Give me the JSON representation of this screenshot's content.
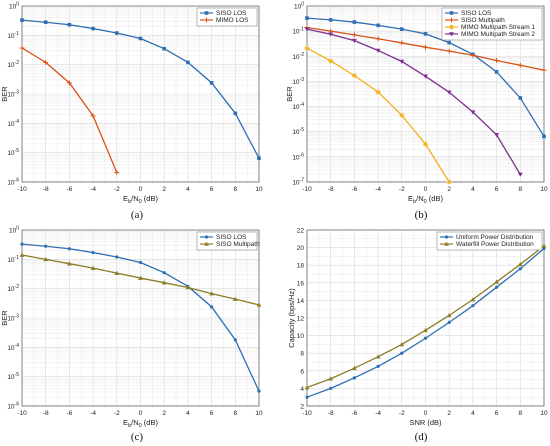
{
  "colors": {
    "blue": "#2e6fb3",
    "red": "#d95319",
    "orange": "#f2b01e",
    "purple": "#7e2f8e",
    "olive": "#8c7d26",
    "grid": "#d9d9d9"
  },
  "chart_data": [
    {
      "type": "line",
      "panel_label": "(a)",
      "xlabel_main": "E",
      "xlabel_sub": "b",
      "xlabel_mid": "/N",
      "xlabel_sub2": "0",
      "xlabel_tail": " (dB)",
      "ylabel": "BER",
      "yscale": "log",
      "xlim": [
        -10,
        10
      ],
      "ylim_exp": [
        -6,
        0
      ],
      "x_ticks": [
        "-10",
        "-8",
        "-6",
        "-4",
        "-2",
        "0",
        "2",
        "4",
        "6",
        "8",
        "10"
      ],
      "y_tick_exps": [
        -6,
        -5,
        -4,
        -3,
        -2,
        -1,
        0
      ],
      "grid": true,
      "legend_position": "top-right",
      "series": [
        {
          "name": "SISO LOS",
          "color": "#2e6fb3",
          "marker": "square",
          "x": [
            -10,
            -8,
            -6,
            -4,
            -2,
            0,
            2,
            4,
            6,
            8,
            10
          ],
          "y": [
            0.33,
            0.28,
            0.23,
            0.17,
            0.12,
            0.078,
            0.035,
            0.012,
            0.0024,
            0.00022,
            6.5e-06
          ]
        },
        {
          "name": "MIMO LOS",
          "color": "#d95319",
          "marker": "plus",
          "x": [
            -10,
            -8,
            -6,
            -4,
            -2
          ],
          "y": [
            0.037,
            0.012,
            0.0024,
            0.00018,
            2.1e-06
          ]
        }
      ]
    },
    {
      "type": "line",
      "panel_label": "(b)",
      "xlabel_main": "E",
      "xlabel_sub": "b",
      "xlabel_mid": "/N",
      "xlabel_sub2": "0",
      "xlabel_tail": " (dB)",
      "ylabel": "BER",
      "yscale": "log",
      "xlim": [
        -10,
        10
      ],
      "ylim_exp": [
        -7,
        0
      ],
      "x_ticks": [
        "-10",
        "-8",
        "-6",
        "-4",
        "-2",
        "0",
        "2",
        "4",
        "6",
        "8",
        "10"
      ],
      "y_tick_exps": [
        -7,
        -6,
        -5,
        -4,
        -3,
        -2,
        -1,
        0
      ],
      "grid": true,
      "legend_position": "top-right",
      "series": [
        {
          "name": "SISO LOS",
          "color": "#2e6fb3",
          "marker": "square",
          "x": [
            -10,
            -8,
            -6,
            -4,
            -2,
            0,
            2,
            4,
            6,
            8,
            10
          ],
          "y": [
            0.33,
            0.28,
            0.23,
            0.17,
            0.12,
            0.078,
            0.035,
            0.012,
            0.0024,
            0.00022,
            6.5e-06
          ]
        },
        {
          "name": "SISO Multipath",
          "color": "#d95319",
          "marker": "plus",
          "x": [
            -10,
            -8,
            -6,
            -4,
            -2,
            0,
            2,
            4,
            6,
            8,
            10
          ],
          "y": [
            0.14,
            0.1,
            0.071,
            0.05,
            0.034,
            0.023,
            0.016,
            0.011,
            0.0068,
            0.0044,
            0.0028
          ]
        },
        {
          "name": "MIMO Multipath Stream 1",
          "color": "#f2b01e",
          "marker": "star",
          "x": [
            -10,
            -8,
            -6,
            -4,
            -2,
            0,
            2
          ],
          "y": [
            0.021,
            0.0065,
            0.0017,
            0.00038,
            4.5e-05,
            3.2e-06,
            1e-07
          ]
        },
        {
          "name": "MIMO Multipath Stream 2",
          "color": "#7e2f8e",
          "marker": "triangle-down",
          "x": [
            -10,
            -8,
            -6,
            -4,
            -2,
            0,
            2,
            4,
            6,
            8
          ],
          "y": [
            0.12,
            0.075,
            0.042,
            0.017,
            0.0062,
            0.0016,
            0.00037,
            6e-05,
            7.5e-06,
            2e-07
          ]
        }
      ]
    },
    {
      "type": "line",
      "panel_label": "(c)",
      "xlabel_main": "E",
      "xlabel_sub": "b",
      "xlabel_mid": "/N",
      "xlabel_sub2": "0",
      "xlabel_tail": " (dB)",
      "ylabel": "BER",
      "yscale": "log",
      "xlim": [
        -10,
        10
      ],
      "ylim_exp": [
        -6,
        0
      ],
      "x_ticks": [
        "-10",
        "-8",
        "-6",
        "-4",
        "-2",
        "0",
        "2",
        "4",
        "6",
        "8",
        "10"
      ],
      "y_tick_exps": [
        -6,
        -5,
        -4,
        -3,
        -2,
        -1,
        0
      ],
      "grid": true,
      "legend_position": "top-right",
      "series": [
        {
          "name": "SISO LOS",
          "color": "#2e6fb3",
          "marker": "dot",
          "x": [
            -10,
            -8,
            -6,
            -4,
            -2,
            0,
            2,
            4,
            6,
            8,
            10
          ],
          "y": [
            0.33,
            0.28,
            0.23,
            0.17,
            0.12,
            0.078,
            0.035,
            0.012,
            0.0024,
            0.00018,
            3.2e-06
          ]
        },
        {
          "name": "SISO Multipath",
          "color": "#8c7d26",
          "marker": "triangle",
          "x": [
            -10,
            -8,
            -6,
            -4,
            -2,
            0,
            2,
            4,
            6,
            8,
            10
          ],
          "y": [
            0.14,
            0.1,
            0.071,
            0.05,
            0.034,
            0.023,
            0.016,
            0.011,
            0.0068,
            0.0044,
            0.0028
          ]
        }
      ]
    },
    {
      "type": "line",
      "panel_label": "(d)",
      "xlabel_main": "SNR (dB)",
      "xlabel_sub": "",
      "xlabel_mid": "",
      "xlabel_sub2": "",
      "xlabel_tail": "",
      "ylabel": "Capacity (bps/Hz)",
      "yscale": "linear",
      "xlim": [
        -10,
        10
      ],
      "ylim": [
        2,
        22
      ],
      "x_ticks": [
        "-10",
        "-8",
        "-6",
        "-4",
        "-2",
        "0",
        "2",
        "4",
        "6",
        "8",
        "10"
      ],
      "y_ticks": [
        2,
        4,
        6,
        8,
        10,
        12,
        14,
        16,
        18,
        20,
        22
      ],
      "grid": true,
      "legend_position": "top-right",
      "series": [
        {
          "name": "Uniform Power Distribution",
          "color": "#2e6fb3",
          "marker": "dot",
          "x": [
            -10,
            -8,
            -6,
            -4,
            -2,
            0,
            2,
            4,
            6,
            8,
            10
          ],
          "y": [
            3.0,
            4.0,
            5.2,
            6.5,
            8.0,
            9.7,
            11.5,
            13.4,
            15.5,
            17.6,
            19.9
          ]
        },
        {
          "name": "Waterfill Power Distribution",
          "color": "#8c7d26",
          "marker": "triangle",
          "x": [
            -10,
            -8,
            -6,
            -4,
            -2,
            0,
            2,
            4,
            6,
            8,
            10
          ],
          "y": [
            4.1,
            5.1,
            6.3,
            7.6,
            9.0,
            10.6,
            12.3,
            14.1,
            16.1,
            18.1,
            20.2
          ]
        }
      ]
    }
  ]
}
